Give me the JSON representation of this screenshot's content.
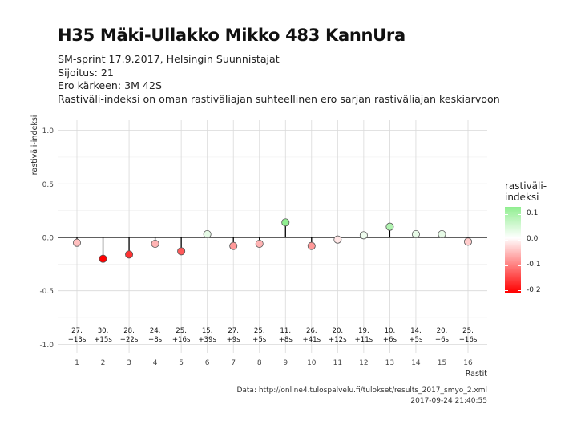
{
  "title": "H35 Mäki-Ullakko Mikko 483 KannUra",
  "subtitle_lines": [
    "SM-sprint 17.9.2017, Helsingin Suunnistajat",
    "Sijoitus: 21",
    "Ero kärkeen: 3M 42S",
    "Rastiväli-indeksi on oman rastiväliajan suhteellinen ero sarjan rastiväliajan keskiarvoon"
  ],
  "caption_lines": [
    "Data: http://online4.tulospalvelu.fi/tulokset/results_2017_smyo_2.xml",
    "2017-09-24 21:40:55"
  ],
  "legend": {
    "title_lines": [
      "rastiväli-",
      "indeksi"
    ],
    "ticks": [
      "0.1",
      "0.0",
      "-0.1",
      "-0.2"
    ],
    "color_high": "#90ee90",
    "color_mid": "#ffffff",
    "color_low": "#ff0000"
  },
  "chart_data": {
    "type": "scatter",
    "xlabel": "Rastit",
    "ylabel": "rastiväli-indeksi",
    "ylim": [
      -1.1,
      1.1
    ],
    "yticks": [
      "-1.0",
      "-0.5",
      "0.0",
      "0.5",
      "1.0"
    ],
    "x": [
      1,
      2,
      3,
      4,
      5,
      6,
      7,
      8,
      9,
      10,
      11,
      12,
      13,
      14,
      15,
      16
    ],
    "values": [
      -0.05,
      -0.2,
      -0.16,
      -0.06,
      -0.13,
      0.03,
      -0.08,
      -0.06,
      0.14,
      -0.08,
      -0.02,
      0.02,
      0.1,
      0.03,
      0.03,
      -0.04
    ],
    "labels_rank": [
      "27.",
      "30.",
      "28.",
      "24.",
      "25.",
      "15.",
      "27.",
      "25.",
      "11.",
      "26.",
      "20.",
      "19.",
      "10.",
      "14.",
      "20.",
      "25."
    ],
    "labels_diff": [
      "+13s",
      "+15s",
      "+22s",
      "+8s",
      "+16s",
      "+39s",
      "+9s",
      "+5s",
      "+8s",
      "+41s",
      "+12s",
      "+11s",
      "+6s",
      "+5s",
      "+6s",
      "+16s"
    ],
    "grid": true,
    "legend_position": "right"
  }
}
